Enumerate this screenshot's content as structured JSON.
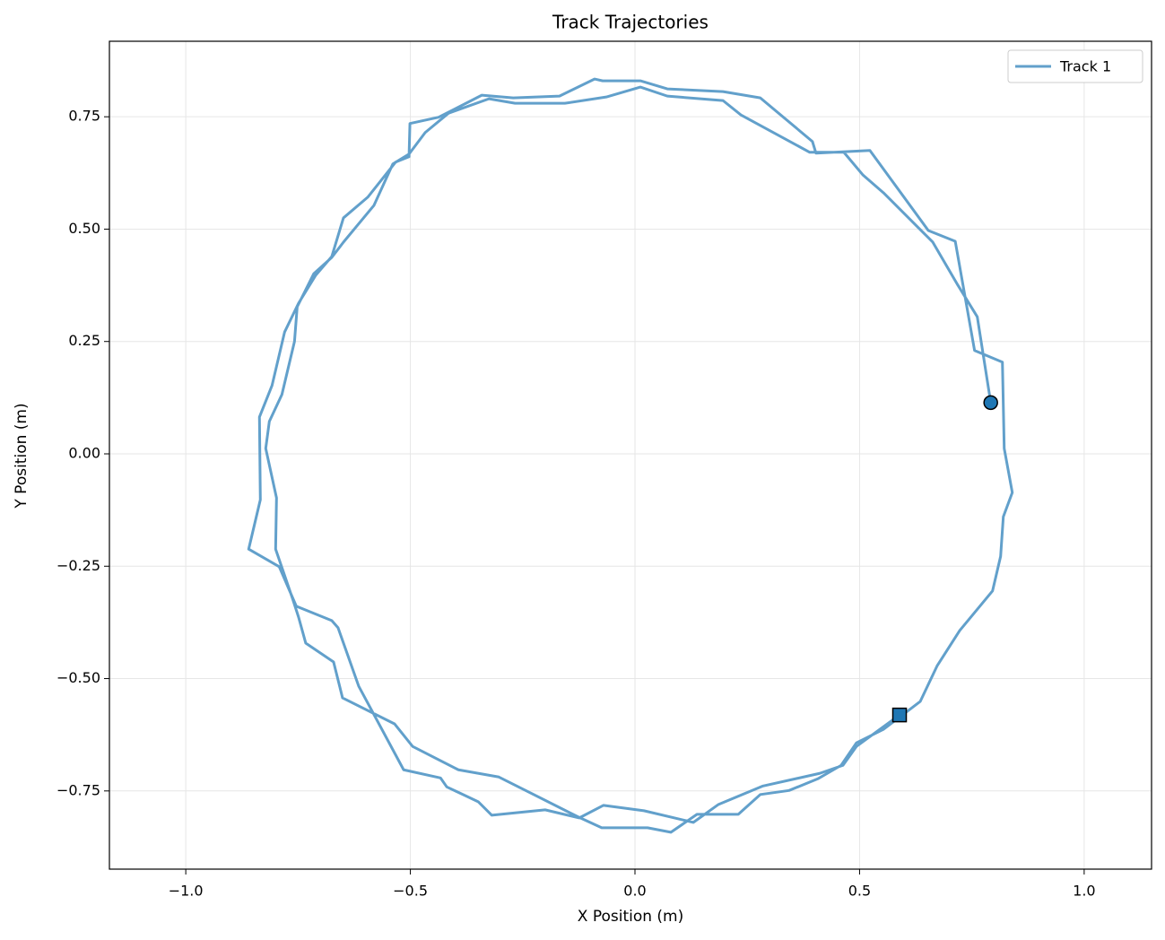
{
  "chart_data": {
    "type": "line",
    "title": "Track Trajectories",
    "xlabel": "X Position (m)",
    "ylabel": "Y Position (m)",
    "x": [
      0.792,
      0.762,
      0.719,
      0.663,
      0.623,
      0.553,
      0.507,
      0.465,
      0.389,
      0.236,
      0.196,
      0.072,
      0.012,
      -0.064,
      -0.156,
      -0.267,
      -0.325,
      -0.415,
      -0.467,
      -0.503,
      -0.539,
      -0.581,
      -0.649,
      -0.675,
      -0.715,
      -0.752,
      -0.758,
      -0.786,
      -0.814,
      -0.822,
      -0.798,
      -0.8,
      -0.762,
      -0.749,
      -0.733,
      -0.671,
      -0.651,
      -0.535,
      -0.495,
      -0.393,
      -0.303,
      -0.126,
      -0.074,
      0.028,
      0.08,
      0.138,
      0.23,
      0.279,
      0.343,
      0.407,
      0.459,
      0.493,
      0.553,
      0.635,
      0.673,
      0.723,
      0.796,
      0.814,
      0.82,
      0.84,
      0.822,
      0.818,
      0.756,
      0.713,
      0.653,
      0.523,
      0.403,
      0.395,
      0.279,
      0.196,
      0.072,
      0.012,
      -0.072,
      -0.09,
      -0.168,
      -0.271,
      -0.341,
      -0.437,
      -0.501,
      -0.503,
      -0.533,
      -0.595,
      -0.649,
      -0.675,
      -0.711,
      -0.749,
      -0.78,
      -0.808,
      -0.836,
      -0.834,
      -0.86,
      -0.792,
      -0.754,
      -0.675,
      -0.661,
      -0.615,
      -0.515,
      -0.433,
      -0.419,
      -0.349,
      -0.319,
      -0.2,
      -0.124,
      -0.07,
      0.02,
      0.13,
      0.186,
      0.285,
      0.411,
      0.463,
      0.493,
      0.589
    ],
    "series": [
      {
        "name": "Track 1",
        "color": "#62a0cb",
        "marker_color": "#1f77b4",
        "values": [
          0.114,
          0.305,
          0.375,
          0.471,
          0.511,
          0.581,
          0.621,
          0.671,
          0.671,
          0.754,
          0.786,
          0.796,
          0.816,
          0.794,
          0.78,
          0.78,
          0.79,
          0.758,
          0.715,
          0.667,
          0.645,
          0.553,
          0.471,
          0.437,
          0.401,
          0.327,
          0.25,
          0.132,
          0.072,
          0.012,
          -0.098,
          -0.212,
          -0.323,
          -0.363,
          -0.421,
          -0.463,
          -0.543,
          -0.601,
          -0.651,
          -0.703,
          -0.719,
          -0.808,
          -0.832,
          -0.832,
          -0.842,
          -0.802,
          -0.802,
          -0.758,
          -0.749,
          -0.723,
          -0.693,
          -0.643,
          -0.613,
          -0.551,
          -0.471,
          -0.393,
          -0.305,
          -0.228,
          -0.14,
          -0.086,
          0.012,
          0.204,
          0.23,
          0.473,
          0.497,
          0.675,
          0.669,
          0.695,
          0.792,
          0.806,
          0.812,
          0.83,
          0.83,
          0.834,
          0.796,
          0.792,
          0.798,
          0.749,
          0.735,
          0.661,
          0.649,
          0.571,
          0.525,
          0.439,
          0.397,
          0.335,
          0.271,
          0.152,
          0.082,
          -0.102,
          -0.212,
          -0.251,
          -0.339,
          -0.371,
          -0.387,
          -0.517,
          -0.703,
          -0.721,
          -0.741,
          -0.774,
          -0.804,
          -0.792,
          -0.81,
          -0.782,
          -0.794,
          -0.82,
          -0.78,
          -0.739,
          -0.711,
          -0.693,
          -0.651,
          -0.581
        ]
      }
    ],
    "start_marker": "circle",
    "end_marker": "square",
    "xlim": [
      -1.17,
      1.15
    ],
    "ylim": [
      -0.924,
      0.918
    ],
    "xticks": [
      {
        "value": -1.0,
        "label": "−1.0"
      },
      {
        "value": -0.5,
        "label": "−0.5"
      },
      {
        "value": 0,
        "label": "0.0"
      },
      0.5,
      {
        "value": 1,
        "label": "1.0"
      }
    ],
    "yticks": [
      {
        "value": -0.75,
        "label": "−0.75"
      },
      {
        "value": -0.5,
        "label": "−0.50"
      },
      {
        "value": -0.25,
        "label": "−0.25"
      },
      {
        "value": 0,
        "label": "0.00"
      },
      0.25,
      {
        "value": 0.5,
        "label": "0.50"
      },
      0.75
    ],
    "grid": true,
    "legend": "upper right"
  }
}
